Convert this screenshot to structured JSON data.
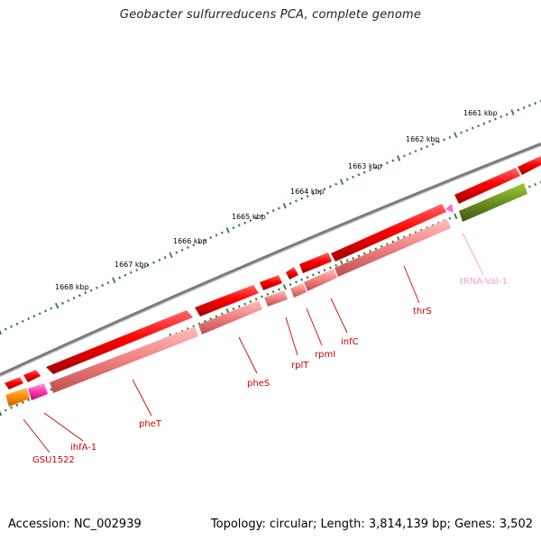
{
  "title": "Geobacter sulfurreducens PCA, complete genome",
  "footer": {
    "accession": "Accession: NC_002939",
    "topology": "Topology: circular; Length: 3,814,139 bp; Genes: 3,502"
  },
  "colors": {
    "backbone": "#7a7a7a",
    "cds": "#ff0000",
    "cds_dark": "#b00000",
    "cds_light": "#f08080",
    "rna": "#ff66cc",
    "trna_label": "#f4a0c8",
    "orange": "#ff8c00",
    "olive": "#6b8e23",
    "ticks": "#2e7d32",
    "label_red": "#d00000"
  },
  "ticks": [
    {
      "label": "1661 kbp"
    },
    {
      "label": "1662 kbp"
    },
    {
      "label": "1663 kbp"
    },
    {
      "label": "1664 kbp"
    },
    {
      "label": "1665 kbp"
    },
    {
      "label": "1666 kbp"
    },
    {
      "label": "1667 kbp"
    },
    {
      "label": "1668 kbp"
    }
  ],
  "genes": [
    {
      "name": "GSU1522",
      "color": "label_red"
    },
    {
      "name": "ihfA-1",
      "color": "label_red"
    },
    {
      "name": "pheT",
      "color": "label_red"
    },
    {
      "name": "pheS",
      "color": "label_red"
    },
    {
      "name": "rplT",
      "color": "label_red"
    },
    {
      "name": "rpmI",
      "color": "label_red"
    },
    {
      "name": "infC",
      "color": "label_red"
    },
    {
      "name": "thrS",
      "color": "label_red"
    },
    {
      "name": "tRNA-Val-1",
      "color": "trna_label"
    }
  ]
}
